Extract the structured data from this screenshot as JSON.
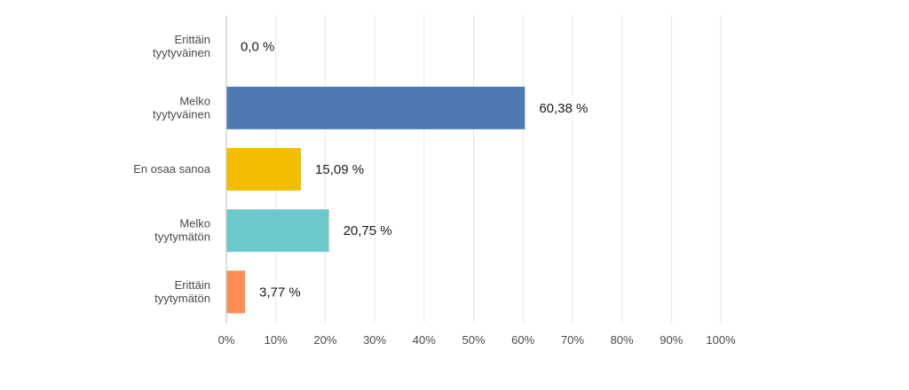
{
  "chart_data": {
    "type": "bar",
    "orientation": "horizontal",
    "categories": [
      [
        "Erittäin",
        "tyytyväinen"
      ],
      [
        "Melko",
        "tyytyväinen"
      ],
      [
        "En osaa sanoa"
      ],
      [
        "Melko",
        "tyytymätön"
      ],
      [
        "Erittäin",
        "tyytymätön"
      ]
    ],
    "values": [
      0.0,
      60.38,
      15.09,
      20.75,
      3.77
    ],
    "value_labels": [
      "0,0 %",
      "60,38 %",
      "15,09 %",
      "20,75 %",
      "3,77 %"
    ],
    "colors": [
      "#4e79b4",
      "#4e79b4",
      "#f5bd00",
      "#6bc9cc",
      "#ff8c57"
    ],
    "xlim": [
      0,
      100
    ],
    "xticks": [
      0,
      10,
      20,
      30,
      40,
      50,
      60,
      70,
      80,
      90,
      100
    ],
    "xtick_labels": [
      "0%",
      "10%",
      "20%",
      "30%",
      "40%",
      "50%",
      "60%",
      "70%",
      "80%",
      "90%",
      "100%"
    ],
    "grid": true,
    "title": "",
    "xlabel": "",
    "ylabel": ""
  }
}
